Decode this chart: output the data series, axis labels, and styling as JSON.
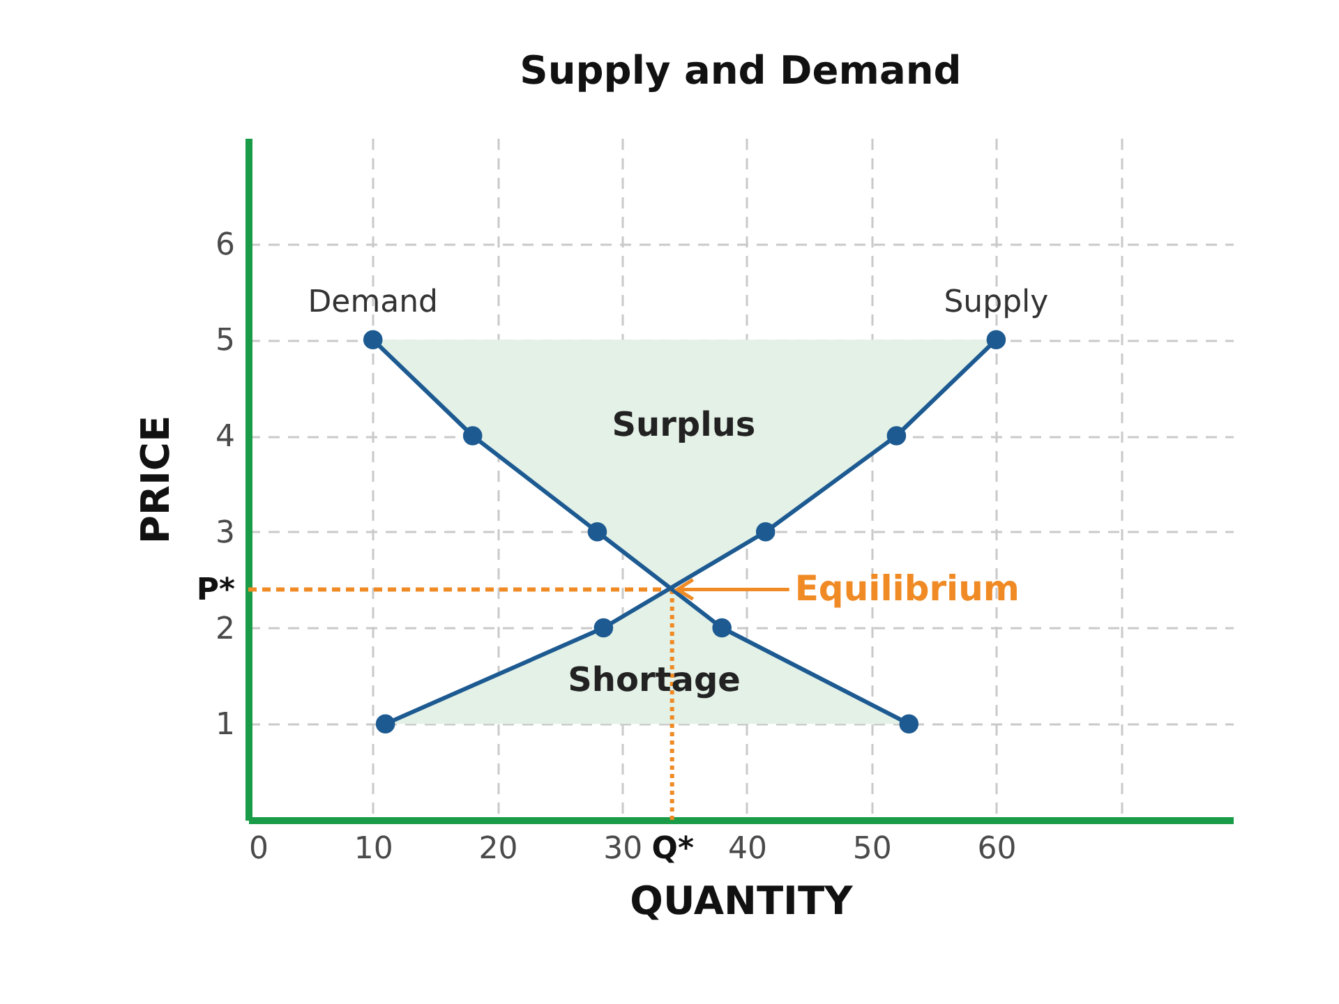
{
  "chart_data": {
    "type": "line",
    "title": "Supply and Demand",
    "xlabel": "QUANTITY",
    "ylabel": "PRICE",
    "series": [
      {
        "type": "area",
        "color": "#e4f1e7",
        "x": [
          10,
          18,
          28,
          34,
          41.5,
          52,
          60
        ],
        "values": [
          null,
          null,
          null,
          null,
          null,
          null,
          null
        ],
        "lower": [
          5,
          4,
          3,
          2.4,
          3,
          4,
          5
        ],
        "upper": [
          5,
          5,
          5,
          5,
          5,
          5,
          5
        ]
      },
      {
        "type": "area",
        "color": "#e4f1e7",
        "x": [
          11,
          28.5,
          34,
          38,
          53
        ],
        "values": [
          null,
          null,
          null,
          null,
          null
        ],
        "lower": [
          1,
          1,
          1,
          1,
          1
        ],
        "upper": [
          1,
          2,
          2.4,
          2,
          1
        ]
      },
      {
        "name": "Demand",
        "color": "#1c5a91",
        "x": [
          10,
          18,
          28,
          38,
          53
        ],
        "values": [
          5,
          4,
          3,
          2,
          1
        ]
      },
      {
        "name": "Supply",
        "color": "#1c5a91",
        "x": [
          11,
          28.5,
          41.5,
          52,
          60
        ],
        "values": [
          1,
          2,
          3,
          4,
          5
        ]
      }
    ],
    "xlim": [
      0,
      79
    ],
    "ylim": [
      0,
      7.1
    ],
    "xticks": [
      0,
      10,
      20,
      30,
      {
        "value": 34,
        "label": "Q*"
      },
      40,
      50,
      60,
      {
        "value": 70,
        "label": null
      }
    ],
    "yticks": [
      1,
      2,
      {
        "value": 2.4,
        "label": "P*"
      },
      3,
      4,
      5,
      6
    ],
    "grid": true,
    "marker": "circle",
    "line_style": "solid",
    "ref_lines": [
      {
        "axis": "y",
        "value": 2.4,
        "color": "#f08a24",
        "line_style": "dashed"
      },
      {
        "axis": "x",
        "value": 34,
        "color": "#f08a24",
        "line_style": "dotted"
      }
    ],
    "annotations": [
      "Surplus",
      "Shortage",
      {
        "text": "Equilibrium",
        "x": 34,
        "y": 2.4
      }
    ]
  }
}
